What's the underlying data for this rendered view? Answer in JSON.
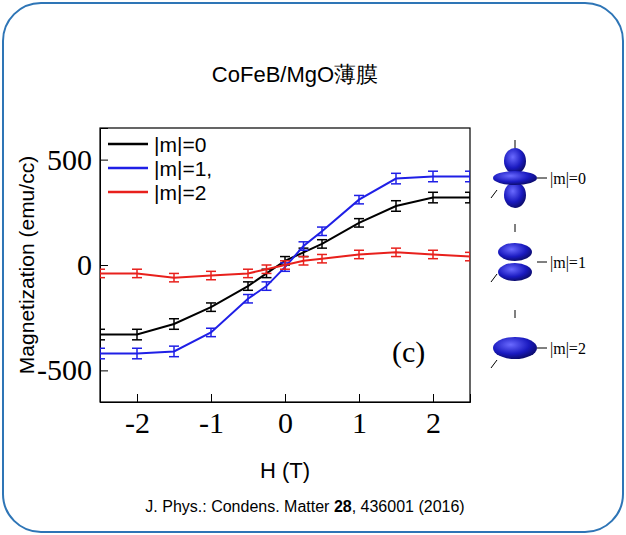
{
  "chart_data": {
    "type": "line",
    "title": "CoFeB/MgO薄膜",
    "x_label": "H (T)",
    "y_label": "Magnetization (emu/cc)",
    "panel_label": "(c)",
    "orbital_labels": [
      "|m|=0",
      "|m|=1",
      "|m|=2"
    ],
    "citation": {
      "journal": "J. Phys.: Condens. Matter ",
      "volume": "28",
      "pages": ", 436001 (2016)"
    },
    "x": [
      -2.5,
      -2,
      -1.5,
      -1,
      -0.5,
      -0.25,
      0,
      0.25,
      0.5,
      1,
      1.5,
      2,
      2.5
    ],
    "series": [
      {
        "name": "|m|=0",
        "color": "#000000",
        "values": [
          -330,
          -330,
          -280,
          -200,
          -100,
          -40,
          20,
          60,
          100,
          200,
          280,
          320,
          320
        ],
        "errors": [
          25,
          25,
          25,
          20,
          20,
          20,
          20,
          20,
          20,
          20,
          25,
          25,
          25
        ]
      },
      {
        "name": "|m|=1,",
        "color": "#1f1fe6",
        "values": [
          -420,
          -420,
          -410,
          -320,
          -160,
          -100,
          -10,
          90,
          160,
          310,
          410,
          420,
          420
        ],
        "errors": [
          25,
          25,
          25,
          20,
          20,
          20,
          20,
          20,
          20,
          20,
          25,
          25,
          25
        ]
      },
      {
        "name": "|m|=2",
        "color": "#e8201c",
        "values": [
          -40,
          -40,
          -60,
          -50,
          -40,
          -20,
          0,
          20,
          30,
          50,
          60,
          50,
          40
        ],
        "errors": [
          20,
          20,
          20,
          20,
          20,
          20,
          20,
          20,
          20,
          20,
          20,
          20,
          20
        ]
      }
    ],
    "xlim": [
      -2.5,
      2.5
    ],
    "xticks": [
      -2,
      -1,
      0,
      1,
      2
    ],
    "ylim": [
      -650,
      650
    ],
    "yticks": [
      -500,
      0,
      500
    ],
    "grid": false,
    "legend": "upper left"
  }
}
